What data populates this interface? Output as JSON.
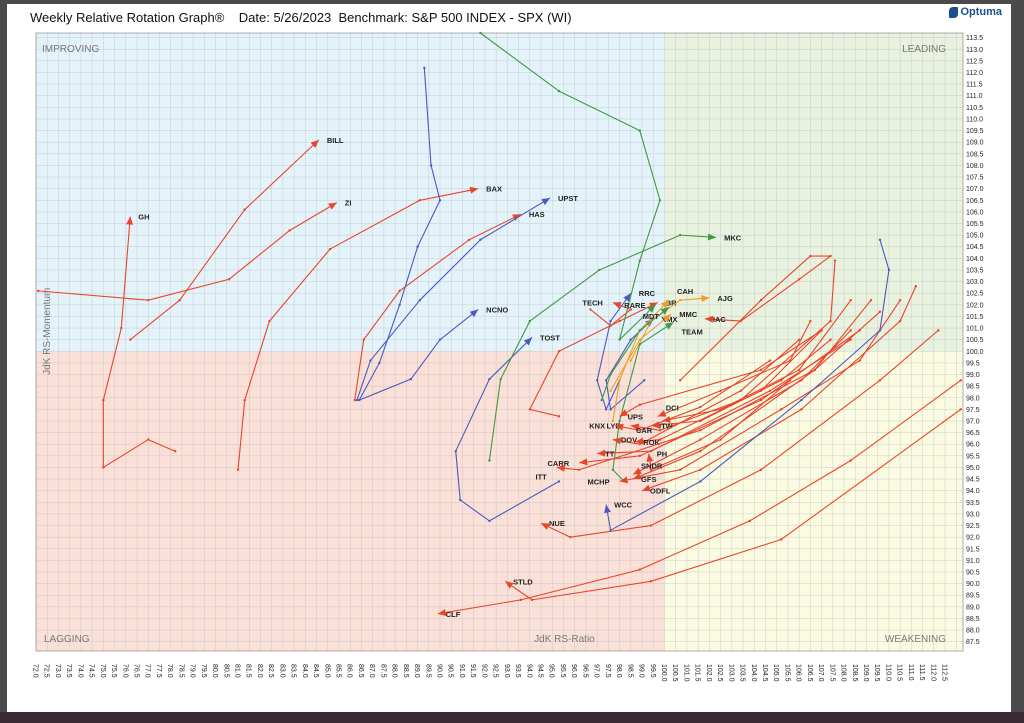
{
  "header": {
    "title": "Weekly Relative Rotation Graph®    Date: 5/26/2023  Benchmark: S&P 500 INDEX - SPX (WI)",
    "logo": "Optuma"
  },
  "colors": {
    "improving": "#e4f3fa",
    "leading": "#e8f2df",
    "lagging": "#fbe0d8",
    "weakening": "#fbfbe2",
    "red": "#e8452a",
    "blue": "#4a5bbf",
    "green": "#3f9a42",
    "orange": "#f0a020"
  },
  "chart_data": {
    "type": "scatter",
    "subtype": "relative-rotation-graph",
    "xlabel": "JdK RS-Ratio",
    "ylabel": "JdK RS-Momentum",
    "xlim": [
      72.0,
      113.3
    ],
    "ylim": [
      87.1,
      113.7
    ],
    "x_ticks_step": 0.5,
    "y_ticks_step": 0.5,
    "x_tick_range": [
      72.0,
      112.5
    ],
    "y_tick_range": [
      87.5,
      113.5
    ],
    "center": [
      100,
      100
    ],
    "grid": true,
    "quadrants": {
      "top_left": "IMPROVING",
      "top_right": "LEADING",
      "bottom_left": "LAGGING",
      "bottom_right": "WEAKENING"
    },
    "series": [
      {
        "name": "GH",
        "color": "red",
        "points": [
          [
            78.2,
            95.7
          ],
          [
            77.0,
            96.2
          ],
          [
            75.0,
            95.0
          ],
          [
            75.0,
            97.9
          ],
          [
            75.8,
            101.0
          ],
          [
            76.2,
            105.8
          ]
        ]
      },
      {
        "name": "BILL",
        "color": "red",
        "points": [
          [
            76.2,
            100.5
          ],
          [
            78.4,
            102.2
          ],
          [
            81.3,
            106.1
          ],
          [
            84.6,
            109.1
          ]
        ]
      },
      {
        "name": "ZI",
        "color": "red",
        "points": [
          [
            72.1,
            102.6
          ],
          [
            77.0,
            102.2
          ],
          [
            80.6,
            103.1
          ],
          [
            83.3,
            105.2
          ],
          [
            85.4,
            106.4
          ]
        ]
      },
      {
        "name": "BAX",
        "color": "red",
        "points": [
          [
            81.0,
            94.9
          ],
          [
            81.3,
            97.9
          ],
          [
            82.4,
            101.3
          ],
          [
            85.1,
            104.4
          ],
          [
            89.1,
            106.5
          ],
          [
            91.7,
            107.0
          ]
        ]
      },
      {
        "name": "HAS",
        "color": "red",
        "points": [
          [
            86.2,
            97.9
          ],
          [
            86.6,
            100.5
          ],
          [
            88.2,
            102.6
          ],
          [
            91.3,
            104.8
          ],
          [
            93.6,
            105.9
          ]
        ]
      },
      {
        "name": "UPST",
        "color": "blue",
        "points": [
          [
            86.3,
            97.9
          ],
          [
            86.9,
            99.6
          ],
          [
            89.1,
            102.2
          ],
          [
            91.8,
            104.8
          ],
          [
            94.9,
            106.6
          ]
        ]
      },
      {
        "name": "NCNO",
        "color": "blue",
        "points": [
          [
            89.3,
            112.2
          ],
          [
            89.6,
            108.0
          ],
          [
            90.0,
            106.5
          ],
          [
            89.0,
            104.5
          ],
          [
            88.2,
            102.0
          ],
          [
            87.3,
            99.5
          ],
          [
            86.4,
            97.9
          ],
          [
            88.7,
            98.8
          ],
          [
            90.0,
            100.5
          ],
          [
            91.7,
            101.8
          ]
        ]
      },
      {
        "name": "TOST",
        "color": "blue",
        "points": [
          [
            95.3,
            94.4
          ],
          [
            92.2,
            92.7
          ],
          [
            90.9,
            93.6
          ],
          [
            90.7,
            95.7
          ],
          [
            92.2,
            98.8
          ],
          [
            94.1,
            100.6
          ]
        ]
      },
      {
        "name": "MKC",
        "color": "green",
        "points": [
          [
            92.2,
            95.3
          ],
          [
            92.7,
            98.8
          ],
          [
            94.0,
            101.3
          ],
          [
            97.1,
            103.5
          ],
          [
            100.7,
            105.0
          ],
          [
            102.3,
            104.9
          ]
        ]
      },
      {
        "name": "RRC",
        "color": "blue",
        "points": [
          [
            98.0,
            98.75
          ],
          [
            97.4,
            97.5
          ],
          [
            97.0,
            98.75
          ],
          [
            97.6,
            101.3
          ],
          [
            98.5,
            102.5
          ]
        ]
      },
      {
        "name": "TECH",
        "color": "red",
        "points": [
          [
            96.7,
            101.8
          ],
          [
            97.6,
            101.1
          ],
          [
            98.5,
            101.8
          ],
          [
            97.7,
            102.1
          ]
        ]
      },
      {
        "name": "BR",
        "color": "red",
        "points": [
          [
            95.3,
            97.2
          ],
          [
            94.0,
            97.5
          ],
          [
            95.3,
            100.0
          ],
          [
            98.0,
            101.3
          ],
          [
            99.7,
            102.1
          ]
        ]
      },
      {
        "name": "RARE",
        "color": "green",
        "points": [
          [
            91.8,
            113.7
          ],
          [
            95.3,
            111.2
          ],
          [
            98.9,
            109.5
          ],
          [
            99.8,
            106.5
          ],
          [
            98.9,
            103.9
          ],
          [
            98.0,
            100.5
          ],
          [
            99.6,
            102.0
          ]
        ]
      },
      {
        "name": "XMX",
        "color": "blue",
        "points": [
          [
            99.1,
            98.75
          ],
          [
            97.6,
            97.5
          ],
          [
            97.4,
            98.75
          ],
          [
            98.5,
            100.5
          ],
          [
            99.5,
            101.4
          ]
        ]
      },
      {
        "name": "CAH",
        "color": "orange",
        "points": [
          [
            97.7,
            97.0
          ],
          [
            98.0,
            98.75
          ],
          [
            98.9,
            100.9
          ],
          [
            100.2,
            102.2
          ]
        ]
      },
      {
        "name": "AJG",
        "color": "orange",
        "points": [
          [
            98.5,
            99.6
          ],
          [
            99.4,
            101.3
          ],
          [
            100.7,
            102.2
          ],
          [
            102.0,
            102.3
          ]
        ]
      },
      {
        "name": "MDT",
        "color": "green",
        "points": [
          [
            97.2,
            97.9
          ],
          [
            97.6,
            99.0
          ],
          [
            98.9,
            100.9
          ],
          [
            100.2,
            101.9
          ]
        ]
      },
      {
        "name": "MMC",
        "color": "orange",
        "points": [
          [
            97.6,
            98.3
          ],
          [
            98.9,
            100.5
          ],
          [
            100.3,
            101.6
          ]
        ]
      },
      {
        "name": "IAC",
        "color": "red",
        "points": [
          [
            100.7,
            98.75
          ],
          [
            104.3,
            102.2
          ],
          [
            106.5,
            104.1
          ],
          [
            107.4,
            104.1
          ],
          [
            106.0,
            103.1
          ],
          [
            103.4,
            101.3
          ],
          [
            101.8,
            101.4
          ]
        ]
      },
      {
        "name": "TEAM",
        "color": "green",
        "points": [
          [
            98.2,
            94.4
          ],
          [
            97.7,
            94.9
          ],
          [
            98.0,
            97.0
          ],
          [
            98.9,
            100.3
          ],
          [
            100.4,
            101.25
          ]
        ]
      },
      {
        "name": "UPS",
        "color": "red",
        "points": [
          [
            107.0,
            100.9
          ],
          [
            104.3,
            99.2
          ],
          [
            98.9,
            97.7
          ],
          [
            98.0,
            97.2
          ]
        ]
      },
      {
        "name": "LYB",
        "color": "red",
        "points": [
          [
            107.6,
            103.9
          ],
          [
            107.4,
            101.3
          ],
          [
            103.4,
            97.9
          ],
          [
            99.8,
            96.6
          ],
          [
            98.5,
            96.8
          ]
        ]
      },
      {
        "name": "KNX",
        "color": "red",
        "points": [
          [
            104.7,
            99.6
          ],
          [
            101.6,
            97.6
          ],
          [
            98.9,
            96.6
          ],
          [
            97.8,
            96.8
          ]
        ]
      },
      {
        "name": "ITW",
        "color": "red",
        "points": [
          [
            107.4,
            100.5
          ],
          [
            105.2,
            98.75
          ],
          [
            101.6,
            97.0
          ],
          [
            99.4,
            96.8
          ]
        ]
      },
      {
        "name": "DCI",
        "color": "red",
        "points": [
          [
            106.5,
            101.3
          ],
          [
            105.6,
            99.6
          ],
          [
            102.5,
            98.3
          ],
          [
            99.7,
            97.2
          ]
        ]
      },
      {
        "name": "CAR",
        "color": "red",
        "points": [
          [
            108.3,
            102.2
          ],
          [
            106.0,
            99.2
          ],
          [
            102.5,
            97.5
          ],
          [
            99.9,
            97.0
          ]
        ]
      },
      {
        "name": "DOV",
        "color": "red",
        "points": [
          [
            106.0,
            100.5
          ],
          [
            103.4,
            98.3
          ],
          [
            98.9,
            96.0
          ],
          [
            97.7,
            96.2
          ]
        ]
      },
      {
        "name": "ROK",
        "color": "red",
        "points": [
          [
            107.0,
            100.9
          ],
          [
            104.3,
            98.3
          ],
          [
            99.8,
            96.2
          ],
          [
            98.7,
            96.1
          ]
        ]
      },
      {
        "name": "PH",
        "color": "red",
        "points": [
          [
            105.6,
            98.75
          ],
          [
            102.5,
            96.2
          ],
          [
            99.4,
            94.9
          ],
          [
            99.3,
            95.6
          ]
        ]
      },
      {
        "name": "TT",
        "color": "red",
        "points": [
          [
            108.3,
            100.5
          ],
          [
            104.7,
            98.3
          ],
          [
            99.4,
            95.7
          ],
          [
            97.0,
            95.6
          ]
        ]
      },
      {
        "name": "CARR",
        "color": "red",
        "points": [
          [
            108.7,
            100.9
          ],
          [
            104.3,
            97.9
          ],
          [
            98.9,
            95.5
          ],
          [
            96.2,
            95.2
          ]
        ]
      },
      {
        "name": "ITT",
        "color": "red",
        "points": [
          [
            109.6,
            101.7
          ],
          [
            106.7,
            99.2
          ],
          [
            101.6,
            96.6
          ],
          [
            96.2,
            94.9
          ],
          [
            95.2,
            95.0
          ]
        ]
      },
      {
        "name": "MCHP",
        "color": "red",
        "points": [
          [
            110.5,
            102.2
          ],
          [
            108.7,
            99.6
          ],
          [
            105.2,
            97.5
          ],
          [
            100.7,
            94.9
          ],
          [
            98.0,
            94.4
          ]
        ]
      },
      {
        "name": "GFS",
        "color": "red",
        "points": [
          [
            109.2,
            102.2
          ],
          [
            106.7,
            99.2
          ],
          [
            101.6,
            95.7
          ],
          [
            98.6,
            94.5
          ]
        ]
      },
      {
        "name": "SNDR",
        "color": "red",
        "points": [
          [
            108.3,
            100.9
          ],
          [
            106.1,
            98.75
          ],
          [
            101.6,
            96.2
          ],
          [
            98.6,
            94.7
          ]
        ]
      },
      {
        "name": "ODFL",
        "color": "red",
        "points": [
          [
            111.2,
            102.8
          ],
          [
            110.5,
            101.3
          ],
          [
            106.1,
            97.5
          ],
          [
            101.6,
            94.9
          ],
          [
            99.0,
            94.0
          ]
        ]
      },
      {
        "name": "WCC",
        "color": "blue",
        "points": [
          [
            109.6,
            104.8
          ],
          [
            110.0,
            103.5
          ],
          [
            109.6,
            100.9
          ],
          [
            106.1,
            97.9
          ],
          [
            101.6,
            94.4
          ],
          [
            97.6,
            92.3
          ],
          [
            97.4,
            93.4
          ]
        ]
      },
      {
        "name": "NUE",
        "color": "red",
        "points": [
          [
            112.2,
            100.9
          ],
          [
            109.6,
            98.75
          ],
          [
            104.3,
            94.9
          ],
          [
            99.4,
            92.5
          ],
          [
            95.8,
            92.0
          ],
          [
            94.5,
            92.6
          ]
        ]
      },
      {
        "name": "STLD",
        "color": "red",
        "points": [
          [
            113.2,
            97.5
          ],
          [
            105.2,
            91.9
          ],
          [
            99.4,
            90.1
          ],
          [
            94.1,
            89.3
          ],
          [
            92.9,
            90.1
          ]
        ]
      },
      {
        "name": "CLF",
        "color": "red",
        "points": [
          [
            113.2,
            98.75
          ],
          [
            108.3,
            95.3
          ],
          [
            103.8,
            92.7
          ],
          [
            98.9,
            90.6
          ],
          [
            93.6,
            89.3
          ],
          [
            89.9,
            88.7
          ]
        ]
      }
    ]
  }
}
